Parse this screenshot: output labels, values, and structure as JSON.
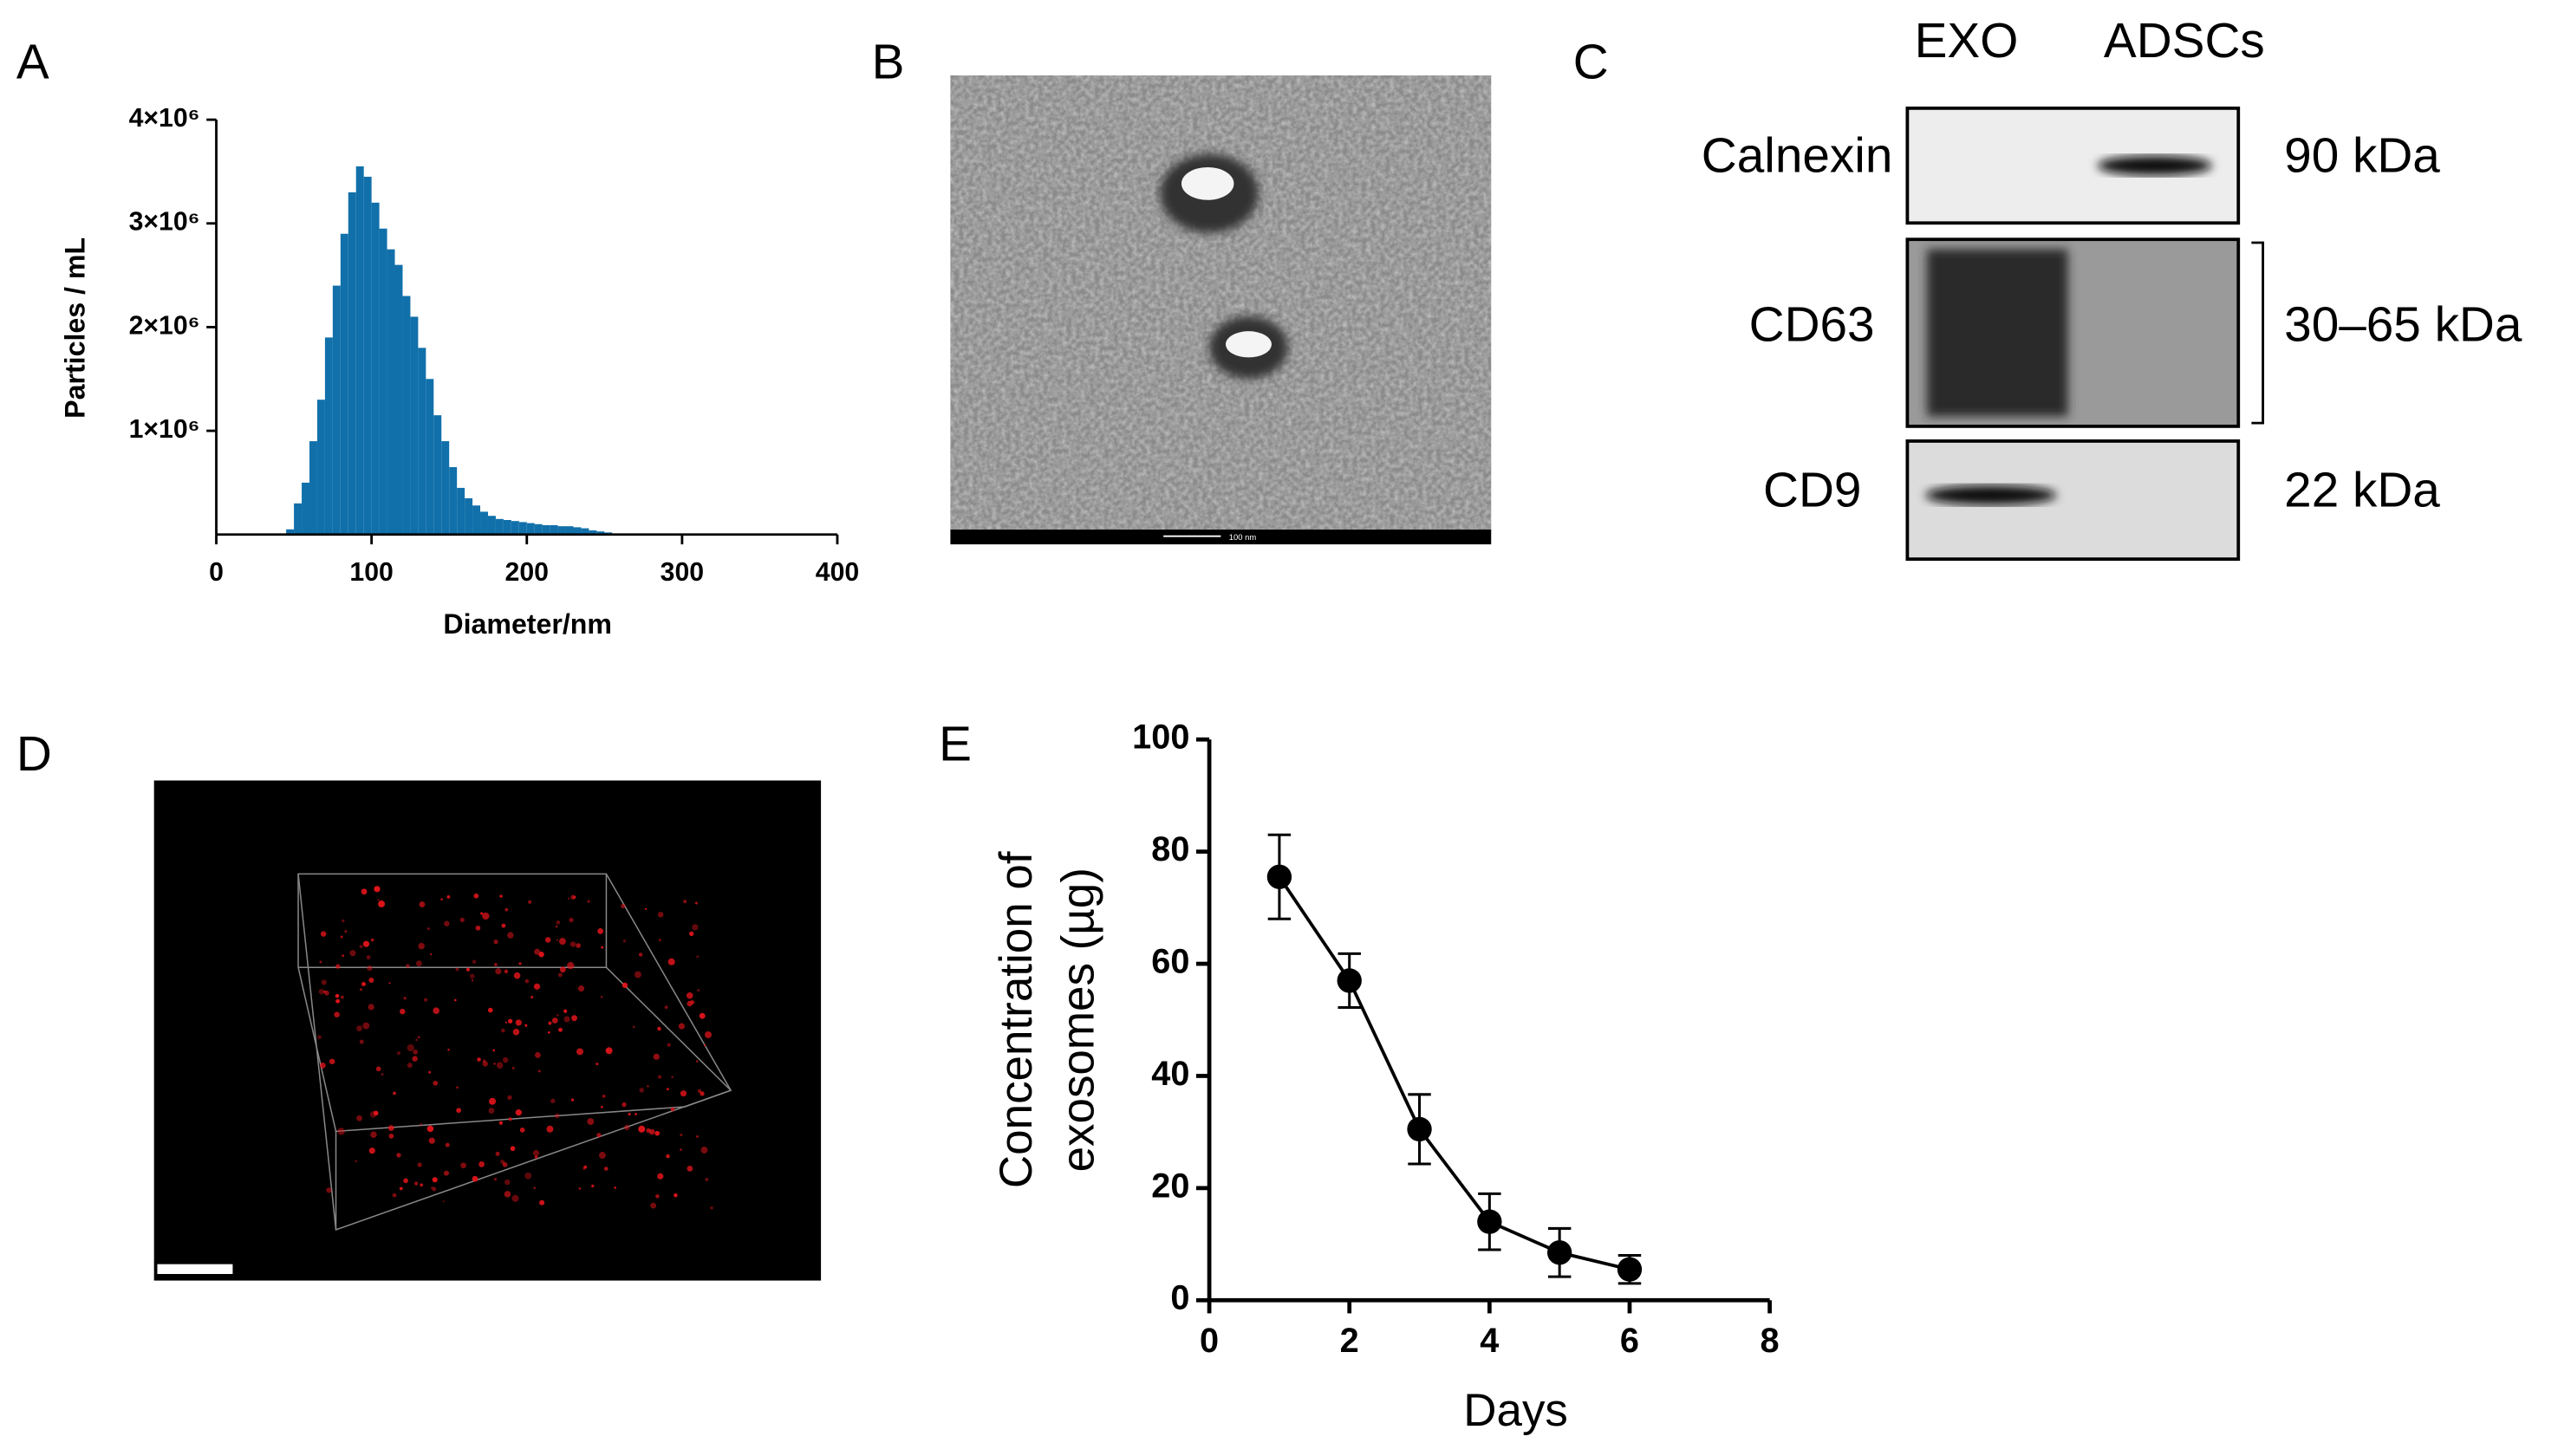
{
  "panel_labels": [
    "A",
    "B",
    "C",
    "D",
    "E"
  ],
  "tem": {
    "scale_bar": "100 nm"
  },
  "blot": {
    "columns": [
      "EXO",
      "ADSCs"
    ],
    "rows": [
      {
        "name": "Calnexin",
        "size": "90 kDa"
      },
      {
        "name": "CD63",
        "size": "30–65 kDa"
      },
      {
        "name": "CD9",
        "size": "22 kDa"
      }
    ]
  },
  "chart_data": [
    {
      "type": "histogram",
      "xlabel": "Diameter/nm",
      "ylabel": "Particles / mL",
      "color": "#1170aa",
      "bins": [
        45,
        50,
        55,
        60,
        65,
        70,
        75,
        80,
        85,
        90,
        95,
        100,
        105,
        110,
        115,
        120,
        125,
        130,
        135,
        140,
        145,
        150,
        155,
        160,
        165,
        170,
        175,
        180,
        185,
        190,
        195,
        200,
        205,
        210,
        215,
        220,
        225,
        230,
        235,
        240,
        245,
        250,
        255,
        260
      ],
      "values": [
        50000,
        300000,
        500000,
        900000,
        1300000,
        1900000,
        2400000,
        2900000,
        3300000,
        3550000,
        3450000,
        3200000,
        2950000,
        2750000,
        2600000,
        2300000,
        2100000,
        1800000,
        1500000,
        1150000,
        900000,
        650000,
        450000,
        350000,
        280000,
        220000,
        180000,
        150000,
        140000,
        130000,
        120000,
        110000,
        100000,
        90000,
        90000,
        80000,
        80000,
        70000,
        60000,
        40000,
        30000,
        20000,
        10000
      ],
      "xlim": [
        0,
        400
      ],
      "xticks": [
        0,
        100,
        200,
        300,
        400
      ],
      "ylim": [
        0,
        4000000
      ],
      "yticks": [
        {
          "value": 1000000,
          "label": "1×10⁶"
        },
        {
          "value": 2000000,
          "label": "2×10⁶"
        },
        {
          "value": 3000000,
          "label": "3×10⁶"
        },
        {
          "value": 4000000,
          "label": "4×10⁶"
        }
      ]
    },
    {
      "type": "line",
      "xlabel": "Days",
      "ylabel": [
        "Concentration of",
        "exosomes (µg)"
      ],
      "color": "#000000",
      "x": [
        1,
        2,
        3,
        4,
        5,
        6
      ],
      "values": [
        75.5,
        57,
        30.5,
        14,
        8.5,
        5.5
      ],
      "errors": [
        7.5,
        4.8,
        6.2,
        5,
        4.3,
        2.5
      ],
      "xlim": [
        0,
        8
      ],
      "xticks": [
        0,
        2,
        4,
        6,
        8
      ],
      "ylim": [
        0,
        100
      ],
      "yticks": [
        0,
        20,
        40,
        60,
        80,
        100
      ]
    }
  ]
}
